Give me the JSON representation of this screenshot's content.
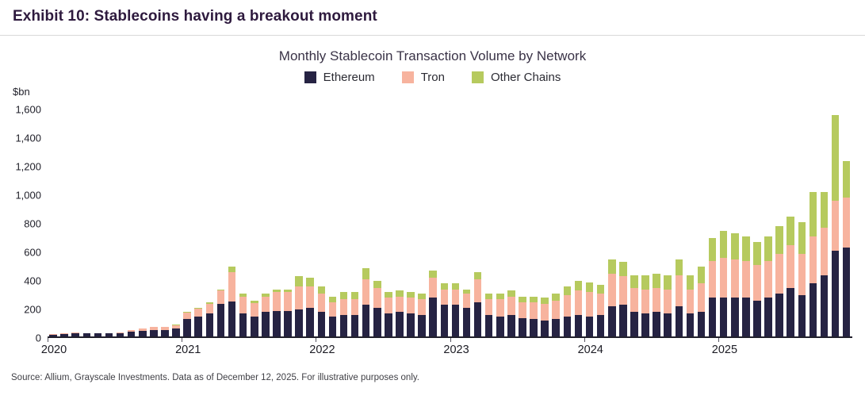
{
  "header": {
    "title": "Exhibit 10: Stablecoins having a breakout moment"
  },
  "source": "Source: Allium, Grayscale Investments. Data as of December 12, 2025. For illustrative purposes only.",
  "chart_data": {
    "type": "bar",
    "stacked": true,
    "title": "Monthly Stablecoin Transaction Volume by Network",
    "xlabel": "",
    "ylabel": "$bn",
    "ylim": [
      0,
      1600
    ],
    "yticks": [
      0,
      200,
      400,
      600,
      800,
      1000,
      1200,
      1400,
      1600
    ],
    "grid": false,
    "legend_position": "top",
    "categories": [
      "2020-01",
      "2020-02",
      "2020-03",
      "2020-04",
      "2020-05",
      "2020-06",
      "2020-07",
      "2020-08",
      "2020-09",
      "2020-10",
      "2020-11",
      "2020-12",
      "2021-01",
      "2021-02",
      "2021-03",
      "2021-04",
      "2021-05",
      "2021-06",
      "2021-07",
      "2021-08",
      "2021-09",
      "2021-10",
      "2021-11",
      "2021-12",
      "2022-01",
      "2022-02",
      "2022-03",
      "2022-04",
      "2022-05",
      "2022-06",
      "2022-07",
      "2022-08",
      "2022-09",
      "2022-10",
      "2022-11",
      "2022-12",
      "2023-01",
      "2023-02",
      "2023-03",
      "2023-04",
      "2023-05",
      "2023-06",
      "2023-07",
      "2023-08",
      "2023-09",
      "2023-10",
      "2023-11",
      "2023-12",
      "2024-01",
      "2024-02",
      "2024-03",
      "2024-04",
      "2024-05",
      "2024-06",
      "2024-07",
      "2024-08",
      "2024-09",
      "2024-10",
      "2024-11",
      "2024-12",
      "2025-01",
      "2025-02",
      "2025-03",
      "2025-04",
      "2025-05",
      "2025-06",
      "2025-07",
      "2025-08",
      "2025-09",
      "2025-10",
      "2025-11",
      "2025-12"
    ],
    "year_labels": [
      {
        "label": "2020",
        "index": 0
      },
      {
        "label": "2021",
        "index": 12
      },
      {
        "label": "2022",
        "index": 24
      },
      {
        "label": "2023",
        "index": 36
      },
      {
        "label": "2024",
        "index": 48
      },
      {
        "label": "2025",
        "index": 60
      }
    ],
    "series": [
      {
        "name": "Ethereum",
        "color": "#262343",
        "values": [
          12,
          15,
          25,
          20,
          20,
          20,
          22,
          35,
          40,
          45,
          45,
          55,
          120,
          140,
          160,
          230,
          245,
          160,
          140,
          170,
          180,
          180,
          190,
          200,
          170,
          140,
          150,
          150,
          220,
          200,
          160,
          170,
          160,
          150,
          270,
          220,
          220,
          200,
          240,
          150,
          140,
          150,
          130,
          120,
          110,
          120,
          140,
          150,
          140,
          150,
          210,
          220,
          170,
          160,
          170,
          160,
          210,
          160,
          170,
          270,
          270,
          270,
          270,
          250,
          270,
          300,
          340,
          290,
          370,
          430,
          600,
          620
        ]
      },
      {
        "name": "Tron",
        "color": "#f7b39e",
        "values": [
          3,
          5,
          5,
          5,
          5,
          5,
          8,
          10,
          15,
          20,
          20,
          25,
          45,
          55,
          70,
          90,
          205,
          120,
          95,
          110,
          130,
          130,
          160,
          150,
          130,
          100,
          110,
          110,
          180,
          140,
          110,
          110,
          110,
          110,
          140,
          110,
          110,
          100,
          160,
          110,
          120,
          130,
          110,
          120,
          120,
          130,
          150,
          170,
          170,
          150,
          230,
          200,
          170,
          170,
          170,
          170,
          220,
          170,
          200,
          260,
          280,
          270,
          260,
          250,
          260,
          280,
          300,
          290,
          330,
          330,
          350,
          350
        ]
      },
      {
        "name": "Other Chains",
        "color": "#b6ca5e",
        "values": [
          0,
          0,
          0,
          0,
          0,
          0,
          0,
          0,
          2,
          2,
          2,
          3,
          5,
          5,
          10,
          10,
          40,
          20,
          15,
          20,
          20,
          20,
          70,
          60,
          50,
          40,
          50,
          50,
          80,
          50,
          40,
          40,
          40,
          40,
          50,
          40,
          40,
          30,
          50,
          40,
          40,
          40,
          40,
          40,
          40,
          50,
          60,
          70,
          70,
          60,
          100,
          100,
          90,
          100,
          100,
          100,
          110,
          100,
          120,
          160,
          190,
          180,
          170,
          160,
          170,
          190,
          200,
          220,
          310,
          250,
          600,
          260
        ]
      }
    ]
  }
}
